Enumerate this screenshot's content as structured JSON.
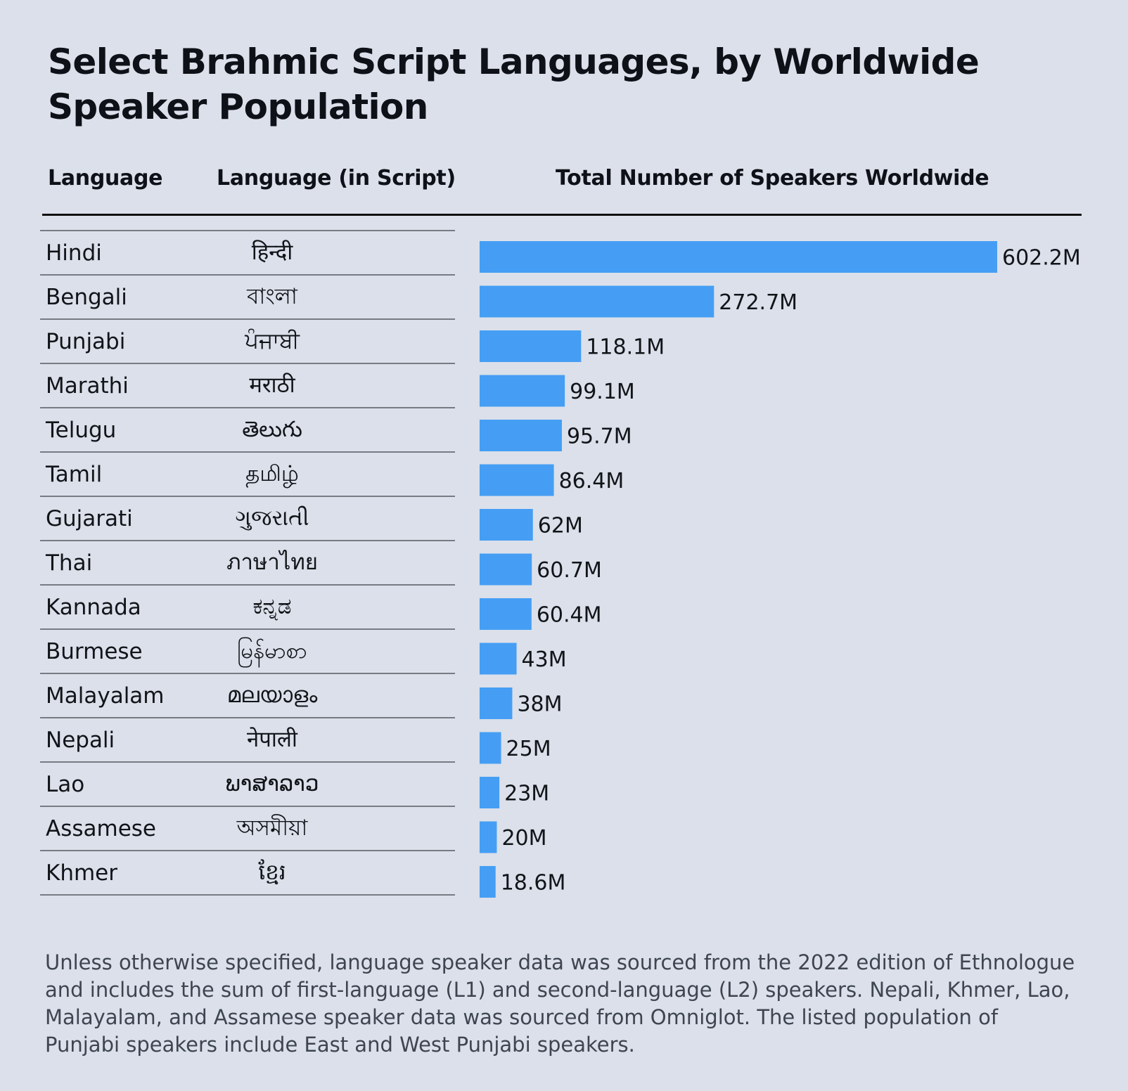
{
  "title": "Select Brahmic Script Languages, by Worldwide Speaker Population",
  "headers": {
    "language": "Language",
    "script": "Language (in Script)",
    "total": "Total Number of Speakers Worldwide"
  },
  "colors": {
    "background": "#dbe0ea",
    "bar": "#459ef4",
    "text": "#111418",
    "footnote": "#3e4550"
  },
  "chart_data": {
    "type": "bar",
    "orientation": "horizontal",
    "title": "Select Brahmic Script Languages, by Worldwide Speaker Population",
    "xlabel": "Total Number of Speakers Worldwide",
    "categories": [
      "Hindi",
      "Bengali",
      "Punjabi",
      "Marathi",
      "Telugu",
      "Tamil",
      "Gujarati",
      "Thai",
      "Kannada",
      "Burmese",
      "Malayalam",
      "Nepali",
      "Lao",
      "Assamese",
      "Khmer"
    ],
    "scripts": [
      "हिन्दी",
      "বাংলা",
      "ਪੰਜਾਬੀ",
      "मराठी",
      "తెలుగు",
      "தமிழ்",
      "ગુજરાતી",
      "ภาษาไทย",
      "ಕನ್ನಡ",
      "မြန်မာစာ",
      "മലയാളം",
      "नेपाली",
      "ພາສາລາວ",
      "অসমীয়া",
      "ខ្មែរ"
    ],
    "values": [
      602.2,
      272.7,
      118.1,
      99.1,
      95.7,
      86.4,
      62,
      60.7,
      60.4,
      43,
      38,
      25,
      23,
      20,
      18.6
    ],
    "value_labels": [
      "602.2M",
      "272.7M",
      "118.1M",
      "99.1M",
      "95.7M",
      "86.4M",
      "62M",
      "60.7M",
      "60.4M",
      "43M",
      "38M",
      "25M",
      "23M",
      "20M",
      "18.6M"
    ],
    "unit": "M",
    "xlim": [
      0,
      602.2
    ],
    "grid": false
  },
  "footnote": "Unless otherwise specified, language speaker data was sourced from the 2022 edition of Ethnologue and includes the sum of first-language (L1) and second-language (L2) speakers. Nepali, Khmer, Lao, Malayalam, and Assamese speaker data was sourced from Omniglot. The listed population of Punjabi speakers include East and West Punjabi speakers."
}
